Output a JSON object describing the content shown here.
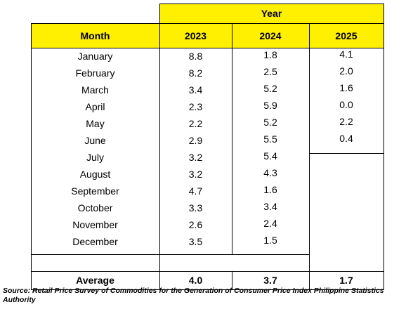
{
  "table": {
    "group_header": "Year",
    "columns": [
      "Month",
      "2023",
      "2024",
      "2025"
    ],
    "rows": [
      [
        "January",
        "8.8",
        "1.8",
        "4.1"
      ],
      [
        "February",
        "8.2",
        "2.5",
        "2.0"
      ],
      [
        "March",
        "3.4",
        "5.2",
        "1.6"
      ],
      [
        "April",
        "2.3",
        "5.9",
        "0.0"
      ],
      [
        "May",
        "2.2",
        "5.2",
        "2.2"
      ],
      [
        "June",
        "2.9",
        "5.5",
        "0.4"
      ],
      [
        "July",
        "3.2",
        "5.4"
      ],
      [
        "August",
        "3.2",
        "4.3"
      ],
      [
        "September",
        "4.7",
        "1.6"
      ],
      [
        "October",
        "3.3",
        "3.4"
      ],
      [
        "November",
        "2.6",
        "2.4"
      ],
      [
        "December",
        "3.5",
        "1.5"
      ]
    ],
    "average": [
      "Average",
      "4.0",
      "3.7",
      "1.7"
    ]
  },
  "source": "Source: Retail Price Survey of Commodities for the Generation of Consumer Price Index Philippine Statistics Authority"
}
